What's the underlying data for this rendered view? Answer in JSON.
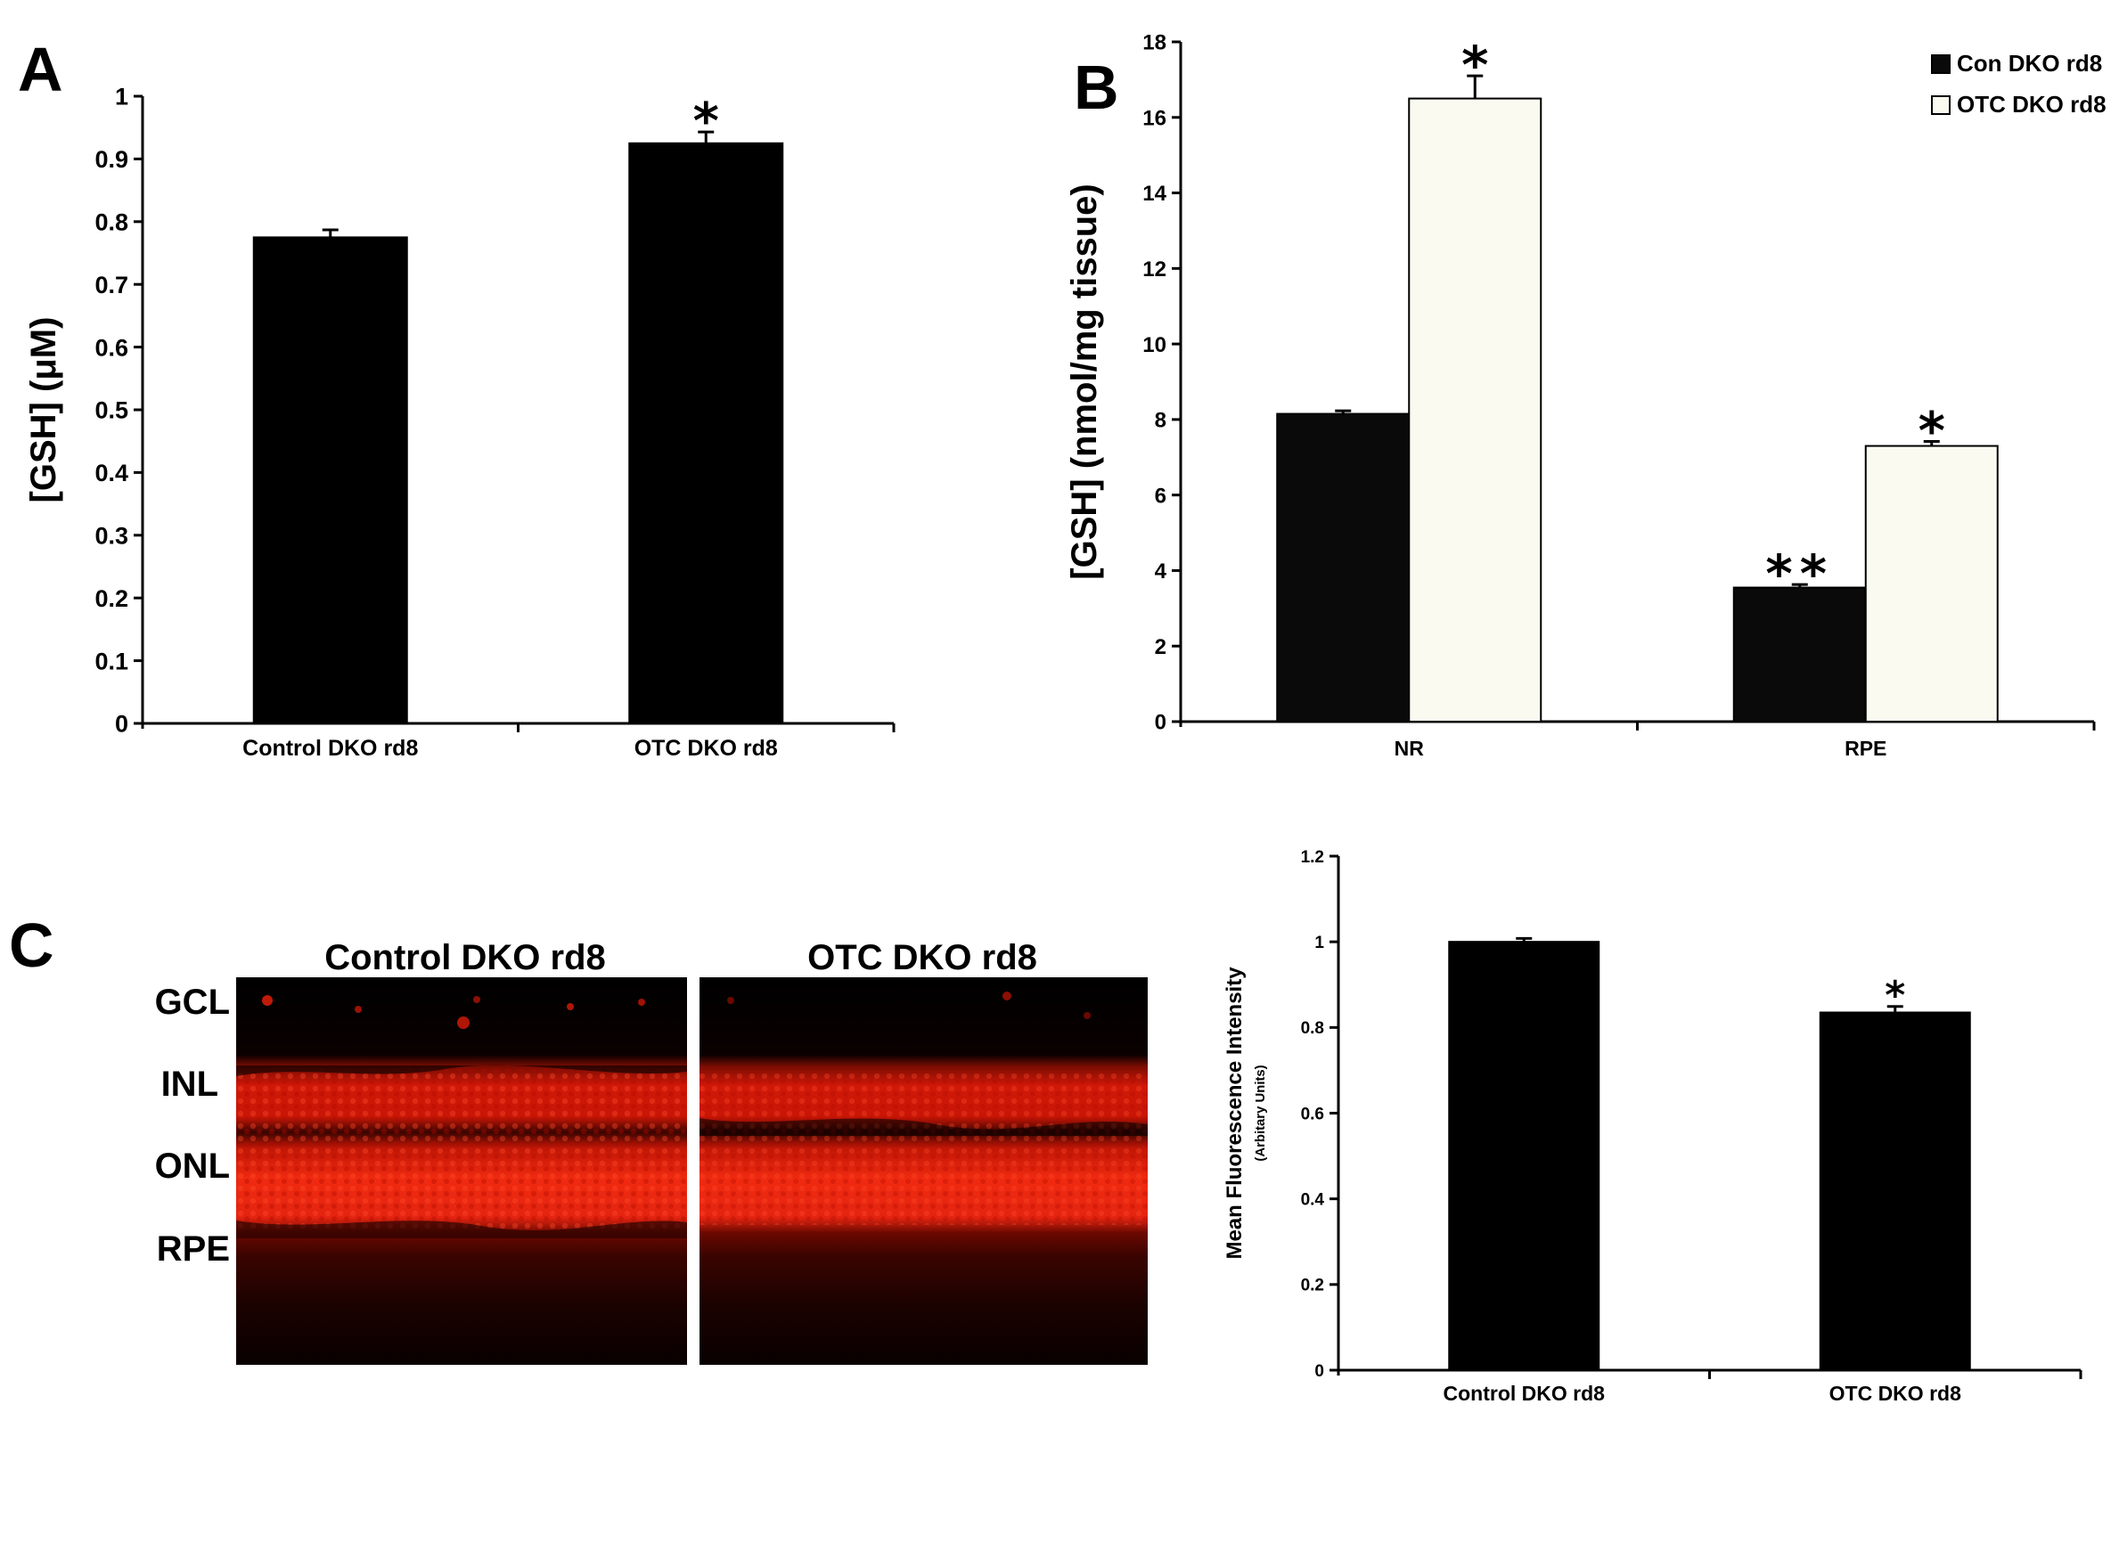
{
  "panels": {
    "a": "A",
    "b": "B",
    "c": "C"
  },
  "chart_data": [
    {
      "id": "A",
      "type": "bar",
      "categories": [
        "Control DKO rd8",
        "OTC DKO rd8"
      ],
      "values": [
        0.775,
        0.925
      ],
      "errors": [
        0.012,
        0.018
      ],
      "significance": [
        "",
        "*"
      ],
      "ylabel": "[GSH] (μM)",
      "ylim": [
        0,
        1
      ],
      "yticks": [
        "0",
        "0.1",
        "0.2",
        "0.3",
        "0.4",
        "0.5",
        "0.6",
        "0.7",
        "0.8",
        "0.9",
        "1"
      ],
      "bar_color": "#000000",
      "grid": false
    },
    {
      "id": "B",
      "type": "bar",
      "categories": [
        "NR",
        "RPE"
      ],
      "series": [
        {
          "name": "Con DKO rd8",
          "values": [
            8.15,
            3.55
          ],
          "errors": [
            0.08,
            0.08
          ],
          "significance": [
            "",
            "**"
          ],
          "color": "#0a0a0a"
        },
        {
          "name": "OTC DKO rd8",
          "values": [
            16.5,
            7.3
          ],
          "errors": [
            0.6,
            0.12
          ],
          "significance": [
            "*",
            "*"
          ],
          "color": "#fbfaf1"
        }
      ],
      "ylabel": "[GSH] (nmol/mg tissue)",
      "ylim": [
        0,
        18
      ],
      "yticks": [
        "0",
        "2",
        "4",
        "6",
        "8",
        "10",
        "12",
        "14",
        "16",
        "18"
      ],
      "legend": "top-right",
      "grid": false
    },
    {
      "id": "C",
      "type": "bar",
      "categories": [
        "Control DKO rd8",
        "OTC DKO rd8"
      ],
      "values": [
        1.0,
        0.835
      ],
      "errors": [
        0.008,
        0.014
      ],
      "significance": [
        "",
        "*"
      ],
      "ylabel": "Mean Fluorescence Intensity",
      "ylabel_sub": "(Arbitary Units)",
      "ylim": [
        0,
        1.2
      ],
      "yticks": [
        "0",
        "0.2",
        "0.4",
        "0.6",
        "0.8",
        "1",
        "1.2"
      ],
      "bar_color": "#000000",
      "grid": false
    }
  ],
  "micrographs": {
    "titles": [
      "Control DKO rd8",
      "OTC DKO rd8"
    ],
    "layers": [
      "GCL",
      "INL",
      "ONL",
      "RPE"
    ],
    "stain_color": "#e0200c"
  }
}
